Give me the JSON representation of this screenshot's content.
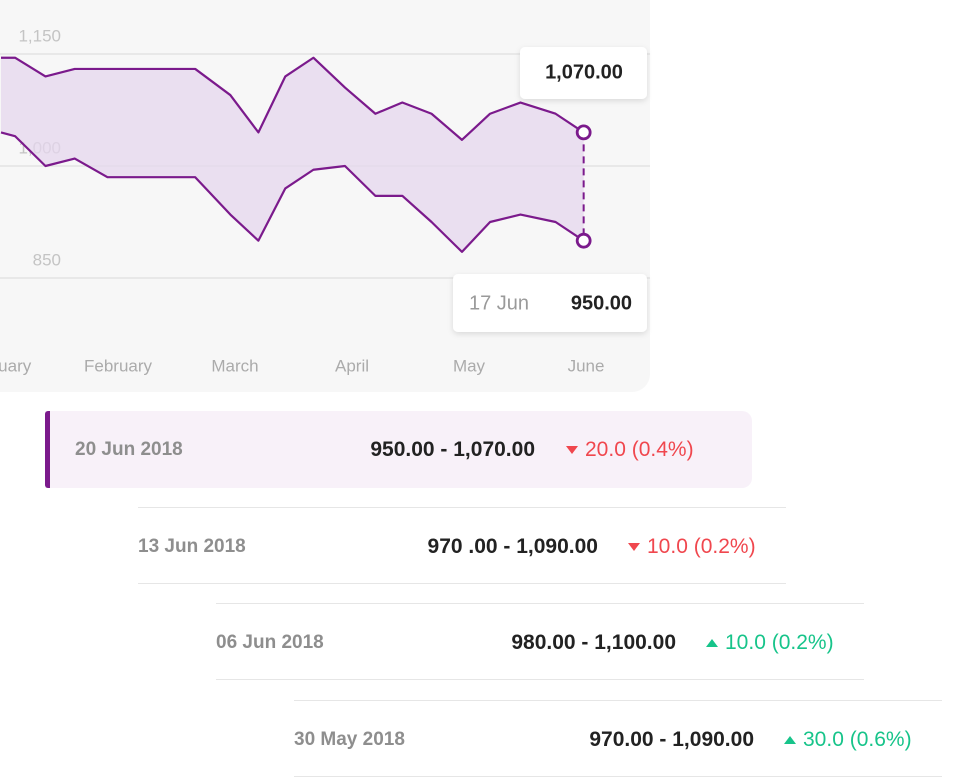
{
  "chart_data": {
    "type": "range-line",
    "x": [
      0,
      0.12,
      0.38,
      0.63,
      0.91,
      1.66,
      1.96,
      2.2,
      2.43,
      2.67,
      2.94,
      3.2,
      3.43,
      3.68,
      3.94,
      4.18,
      4.44,
      4.74,
      4.98
    ],
    "series": [
      {
        "color": "#7b1a8c",
        "values": [
          1145,
          1145,
          1120,
          1130,
          1130,
          1130,
          1095,
          1045,
          1120,
          1145,
          1105,
          1070,
          1085,
          1070,
          1035,
          1070,
          1085,
          1070,
          1045
        ]
      },
      {
        "color": "#7b1a8c",
        "values": [
          1045,
          1040,
          1000,
          1010,
          985,
          985,
          935,
          900,
          970,
          995,
          1000,
          960,
          960,
          925,
          885,
          925,
          935,
          925,
          900
        ]
      }
    ],
    "fill_color": "#e6d7ee",
    "xlim": [
      0,
      5
    ],
    "xticks": [
      {
        "value": 0,
        "label": "January"
      },
      {
        "value": 1,
        "label": "February"
      },
      {
        "value": 2,
        "label": "March"
      },
      {
        "value": 3,
        "label": "April"
      },
      {
        "value": 4,
        "label": "May"
      },
      {
        "value": 5,
        "label": "June"
      }
    ],
    "ylim": [
      850,
      1150
    ],
    "yticks": [
      {
        "value": 850,
        "label": "850"
      },
      {
        "value": 1000,
        "label": "1,000"
      },
      {
        "value": 1150,
        "label": "1,150"
      }
    ],
    "grid": true,
    "tooltip": {
      "high": "1,070.00",
      "date": "17 Jun",
      "low": "950.00"
    }
  },
  "rows": [
    {
      "date": "20 Jun 2018",
      "range": "950.00 - 1,070.00",
      "change": "20.0 (0.4%)",
      "trend": "down"
    },
    {
      "date": "13 Jun 2018",
      "range": "970 .00 - 1,090.00",
      "change": "10.0 (0.2%)",
      "trend": "down"
    },
    {
      "date": "06 Jun 2018",
      "range": "980.00 - 1,100.00",
      "change": "10.0 (0.2%)",
      "trend": "up"
    },
    {
      "date": "30 May 2018",
      "range": "970.00 - 1,090.00",
      "change": "30.0 (0.6%)",
      "trend": "up"
    }
  ]
}
